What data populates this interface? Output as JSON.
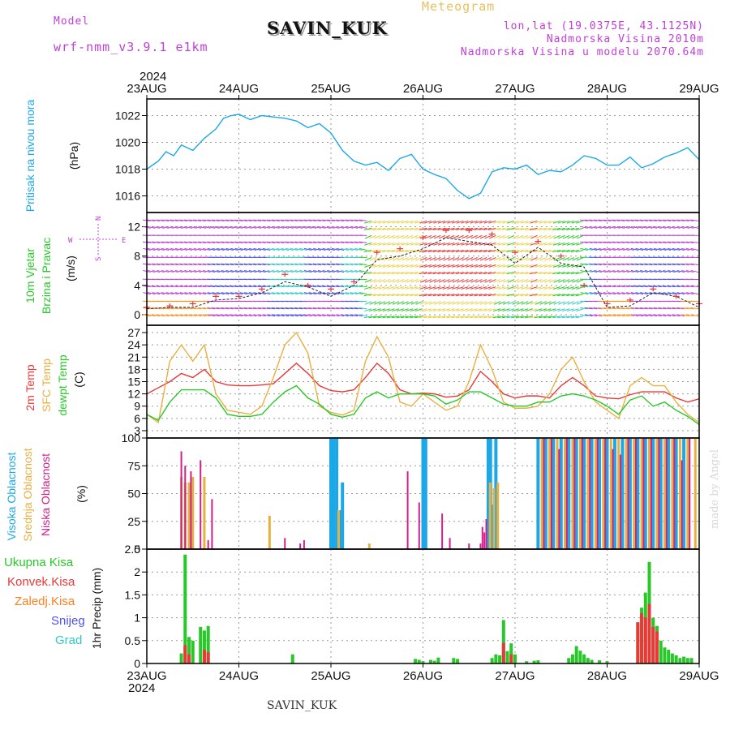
{
  "header": {
    "model_label": "Model",
    "model_name": "wrf-nmm_v3.9.1 e1km",
    "station": "SAVIN_KUK",
    "meteogram_label": "Meteogram",
    "lonlat": "lon,lat (19.0375E, 43.1125N)",
    "elevation": "Nadmorska Visina 2010m",
    "model_elevation": "Nadmorska Visina u modelu 2070.64m"
  },
  "footer": {
    "station": "SAVIN_KUK",
    "credit": "made by Angel"
  },
  "colors": {
    "pressure": "#1ca8e8",
    "t2m": "#e83838",
    "sfc": "#e8b040",
    "dew": "#28c828",
    "high_cloud": "#1ca8e8",
    "mid_cloud": "#e8b040",
    "low_cloud": "#d0208a",
    "rain_total": "#28c828",
    "rain_conv": "#e83838",
    "freezing": "#ff7f20",
    "snow": "#5050f0",
    "hail": "#30c8c8",
    "wind_label": "#28c828",
    "grid": "#999999"
  },
  "chart_data": {
    "type": "meteogram",
    "x_axis": {
      "year": "2024",
      "ticks": [
        "23AUG",
        "24AUG",
        "25AUG",
        "26AUG",
        "27AUG",
        "28AUG",
        "29AUG"
      ],
      "range_hours": [
        0,
        144
      ]
    },
    "panels": [
      {
        "id": "pressure",
        "type": "line",
        "ylabel": "Pritisak na nivou mora",
        "unit": "(hPa)",
        "ylim": [
          1015,
          1023
        ],
        "yticks": [
          1016,
          1018,
          1020,
          1022
        ],
        "x_hours": [
          0,
          3,
          5,
          7,
          9,
          12,
          15,
          18,
          20,
          22,
          24,
          27,
          30,
          33,
          36,
          39,
          42,
          45,
          48,
          51,
          54,
          57,
          60,
          63,
          66,
          69,
          72,
          75,
          78,
          81,
          84,
          87,
          90,
          93,
          96,
          99,
          102,
          105,
          108,
          111,
          114,
          117,
          120,
          123,
          126,
          129,
          132,
          135,
          138,
          141,
          144
        ],
        "values": [
          1018.0,
          1018.6,
          1019.3,
          1019.0,
          1019.8,
          1019.4,
          1020.3,
          1021.0,
          1021.8,
          1022.0,
          1022.1,
          1021.7,
          1022.0,
          1021.9,
          1021.8,
          1021.6,
          1021.1,
          1021.4,
          1020.7,
          1019.4,
          1018.6,
          1018.3,
          1018.5,
          1017.9,
          1018.8,
          1019.1,
          1018.0,
          1017.6,
          1017.3,
          1016.4,
          1015.8,
          1016.2,
          1017.8,
          1018.1,
          1018.0,
          1018.3,
          1017.6,
          1017.9,
          1017.8,
          1018.3,
          1019.0,
          1018.8,
          1018.3,
          1018.3,
          1018.9,
          1018.1,
          1018.4,
          1018.9,
          1019.2,
          1019.6,
          1018.7
        ]
      },
      {
        "id": "wind",
        "type": "wind-barbs",
        "ylabel": "10m Vjetar",
        "ylabel2": "Brzina i Pravac",
        "unit": "(m/s)",
        "compass": {
          "north": "N",
          "west": "W",
          "east": "E",
          "south": "S"
        },
        "ylim": [
          -1,
          13.5
        ],
        "yticks": [
          0,
          4,
          8,
          12
        ],
        "x_hours": [
          0,
          6,
          12,
          18,
          24,
          30,
          36,
          42,
          48,
          54,
          60,
          66,
          72,
          78,
          84,
          90,
          96,
          102,
          108,
          114,
          120,
          126,
          132,
          138,
          144
        ],
        "speed": [
          0.8,
          1.0,
          1.0,
          2.0,
          2.2,
          3.0,
          4.5,
          3.8,
          2.5,
          4.0,
          7.5,
          8.0,
          9.0,
          10.5,
          10.0,
          9.5,
          7.0,
          9.2,
          7.0,
          6.5,
          1.0,
          1.2,
          3.0,
          2.5,
          1.0
        ],
        "gust": [
          1.0,
          1.2,
          1.5,
          2.5,
          2.5,
          3.5,
          5.5,
          4.0,
          3.5,
          4.5,
          8.5,
          9.0,
          10.5,
          11.5,
          11.5,
          11.0,
          8.5,
          10.0,
          8.0,
          4.0,
          1.5,
          2.0,
          3.5,
          2.5,
          1.5
        ]
      },
      {
        "id": "temperature",
        "type": "line",
        "ylabel": "2m Temp",
        "ylabel2": "SFC Temp",
        "ylabel3": "dewpt Temp",
        "unit": "(C)",
        "ylim": [
          2,
          28
        ],
        "yticks": [
          3,
          6,
          9,
          12,
          15,
          18,
          21,
          24,
          27
        ],
        "x_hours": [
          0,
          3,
          6,
          9,
          12,
          15,
          18,
          21,
          24,
          27,
          30,
          33,
          36,
          39,
          42,
          45,
          48,
          51,
          54,
          57,
          60,
          63,
          66,
          69,
          72,
          75,
          78,
          81,
          84,
          87,
          90,
          93,
          96,
          99,
          102,
          105,
          108,
          111,
          114,
          117,
          120,
          123,
          126,
          129,
          132,
          135,
          138,
          141,
          144
        ],
        "series": [
          {
            "name": "2m Temp",
            "values": [
              12,
              13.5,
              15,
              17,
              16,
              18,
              15,
              14.2,
              14,
              14,
              14.2,
              14.5,
              17,
              19.5,
              17,
              14,
              12.8,
              12.5,
              13,
              16,
              19.5,
              17,
              13,
              12,
              12.2,
              12,
              11.2,
              11.5,
              13,
              17.5,
              15,
              12,
              11,
              11.5,
              11.5,
              11,
              14,
              16,
              14,
              11.5,
              11,
              10.8,
              11.8,
              12.5,
              12.5,
              12.5,
              11,
              10,
              10.8
            ]
          },
          {
            "name": "SFC Temp",
            "values": [
              7,
              5,
              20,
              24,
              20,
              24,
              12,
              8,
              7.5,
              7,
              9,
              16,
              24,
              27,
              22,
              9,
              7.5,
              6.8,
              8,
              20,
              26,
              21,
              10,
              9,
              12,
              10,
              8,
              9,
              15,
              24,
              18,
              10,
              8.5,
              8.5,
              9,
              12,
              18,
              21,
              15,
              10,
              8,
              6,
              14,
              16,
              14,
              14,
              10,
              7,
              5
            ]
          },
          {
            "name": "dewpt Temp",
            "values": [
              7,
              5.5,
              10,
              13,
              13,
              13,
              11,
              7,
              6.5,
              6.5,
              7,
              10,
              12.5,
              14,
              11,
              9.5,
              7,
              6.3,
              7,
              11,
              12.5,
              11,
              12,
              12,
              12,
              11.5,
              9.5,
              10.5,
              12.5,
              12.5,
              11,
              9.5,
              9,
              9,
              10,
              10,
              11.5,
              12,
              11.5,
              10.5,
              9,
              7,
              10.5,
              11.5,
              9,
              10,
              8,
              6.5,
              4.5
            ]
          }
        ]
      },
      {
        "id": "clouds",
        "type": "bar",
        "ylabel": "Visoka Oblacnost",
        "ylabel2": "Srednja Oblacnost",
        "ylabel3": "Niska Oblacnost",
        "unit": "(%)",
        "ylim": [
          0,
          100
        ],
        "yticks": [
          0,
          25,
          50,
          75,
          100
        ],
        "series": [
          {
            "name": "Visoka Oblacnost",
            "x_hours": [
              48,
              48.7,
              49.5,
              50.5,
              51,
              72,
              72.7,
              89,
              89.6,
              90.4,
              91,
              102,
              104,
              106,
              108,
              110,
              112,
              114,
              116,
              118,
              120,
              122,
              124,
              126,
              128,
              130,
              132,
              134,
              136,
              138,
              140
            ],
            "values": [
              100,
              100,
              100,
              35,
              60,
              100,
              100,
              100,
              100,
              40,
              100,
              100,
              100,
              100,
              100,
              100,
              100,
              100,
              100,
              100,
              100,
              100,
              100,
              100,
              100,
              100,
              100,
              100,
              100,
              100,
              100
            ]
          },
          {
            "name": "Srednja Oblacnost",
            "x_hours": [
              9,
              10,
              11,
              12,
              15,
              32,
              50,
              58,
              89.5,
              90.5,
              91.5,
              103,
              105,
              107,
              109,
              111,
              113,
              115,
              117,
              119,
              121,
              123,
              125,
              127,
              129,
              131,
              133,
              135,
              137,
              139,
              141,
              143
            ],
            "values": [
              65,
              60,
              60,
              65,
              65,
              30,
              35,
              5,
              60,
              55,
              60,
              100,
              100,
              100,
              100,
              100,
              100,
              100,
              100,
              100,
              100,
              100,
              100,
              100,
              100,
              100,
              100,
              100,
              100,
              100,
              100,
              100
            ]
          },
          {
            "name": "Niska Oblacnost",
            "x_hours": [
              9,
              10,
              11.5,
              14,
              16,
              17,
              36,
              40,
              41,
              68,
              71,
              77,
              79,
              84,
              87,
              87.5,
              88,
              88.5,
              103.5,
              105.5,
              107.5,
              109.5,
              111.5,
              113.5,
              115.5,
              117.5,
              119.5,
              121.5,
              123.5,
              125.5,
              127.5,
              129.5,
              131.5,
              133.5,
              135.5,
              137.5,
              139.5,
              141.5
            ],
            "values": [
              88,
              75,
              70,
              80,
              8,
              45,
              10,
              5,
              8,
              70,
              42,
              32,
              10,
              5,
              5,
              20,
              15,
              27,
              100,
              100,
              90,
              100,
              100,
              100,
              100,
              100,
              100,
              90,
              85,
              100,
              100,
              100,
              100,
              100,
              100,
              100,
              80,
              100
            ]
          }
        ]
      },
      {
        "id": "precip",
        "type": "bar",
        "ylabel": "1hr Precip (mm)",
        "legend": [
          "Ukupna Kisa",
          "Konvek.Kisa",
          "Zaledj.Kisa",
          "Snijeg",
          "Grad"
        ],
        "ylim": [
          0,
          2.5
        ],
        "yticks": [
          0,
          0.5,
          1,
          1.5,
          2,
          2.5
        ],
        "series": [
          {
            "name": "Ukupna Kisa",
            "x_hours": [
              9,
              10,
              11,
              12,
              14,
              15,
              16,
              38,
              70,
              71,
              72,
              74,
              75,
              76,
              80,
              81,
              90,
              91,
              92,
              93,
              94,
              95,
              96,
              99,
              101,
              102,
              110,
              111,
              112,
              113,
              114,
              115,
              116,
              118,
              120,
              128,
              129,
              130,
              131,
              132,
              133,
              134,
              135,
              136,
              137,
              138,
              139,
              140,
              141,
              142
            ],
            "values": [
              0.22,
              2.38,
              0.58,
              0.5,
              0.8,
              0.72,
              0.82,
              0.2,
              0.1,
              0.08,
              0.05,
              0.08,
              0.06,
              0.13,
              0.12,
              0.1,
              0.12,
              0.2,
              0.18,
              0.95,
              0.27,
              0.44,
              0.2,
              0.05,
              0.06,
              0.07,
              0.12,
              0.2,
              0.38,
              0.28,
              0.2,
              0.12,
              0.08,
              0.07,
              0.05,
              0.9,
              1.22,
              1.55,
              2.22,
              1.0,
              0.82,
              0.5,
              0.35,
              0.3,
              0.22,
              0.18,
              0.12,
              0.15,
              0.12,
              0.12
            ]
          },
          {
            "name": "Konvek.Kisa",
            "x_hours": [
              10,
              11,
              15,
              16,
              93,
              95,
              128,
              129,
              130,
              131,
              132,
              133
            ],
            "values": [
              0.4,
              0.2,
              0.3,
              0.25,
              0.45,
              0.2,
              0.9,
              1.1,
              1.0,
              1.3,
              0.8,
              0.7
            ]
          }
        ]
      }
    ]
  }
}
